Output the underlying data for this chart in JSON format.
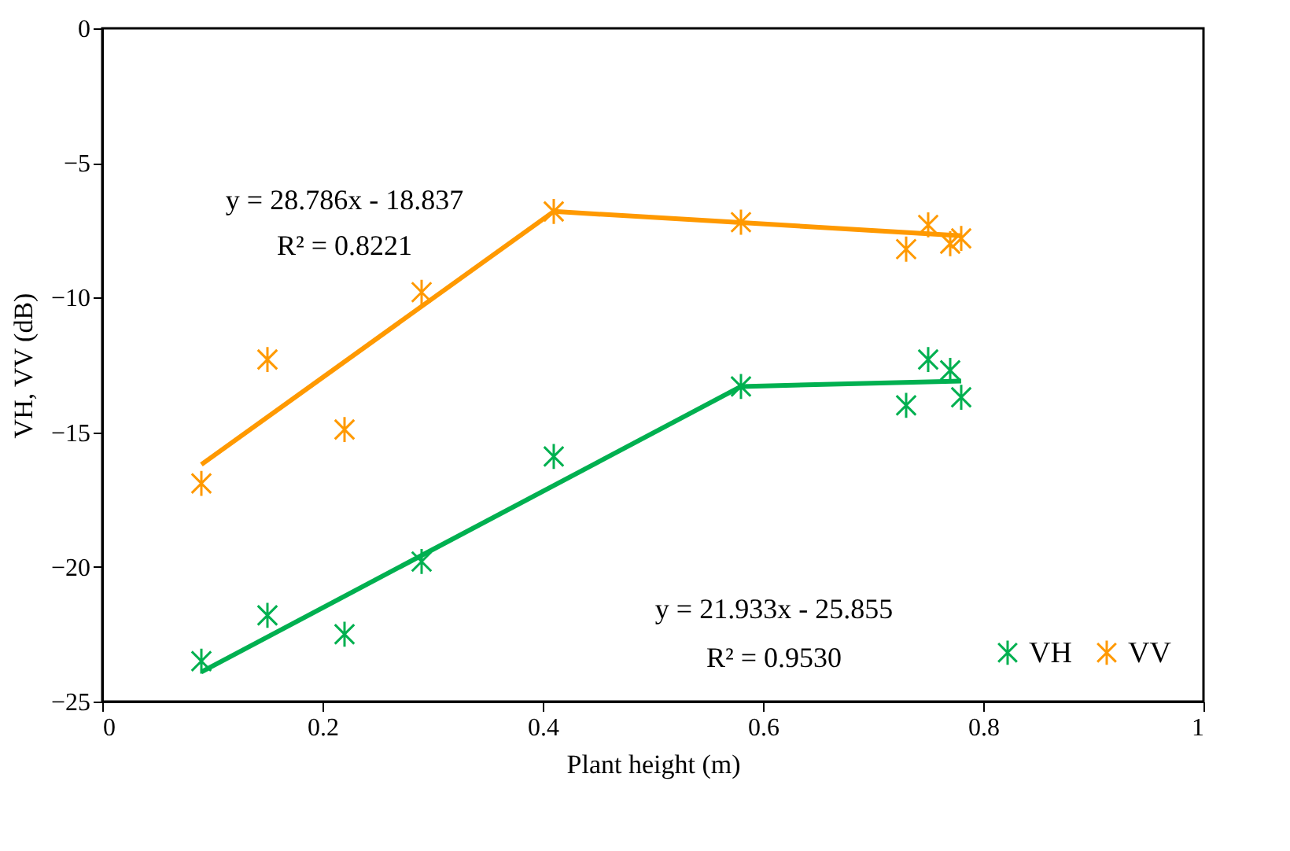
{
  "chart_data": {
    "type": "scatter",
    "xlabel": "Plant height (m)",
    "ylabel": "VH, VV (dB)",
    "xlim": [
      0,
      1
    ],
    "xticks": [
      0,
      0.2,
      0.4,
      0.6,
      0.8,
      1
    ],
    "ylim": [
      -25,
      0
    ],
    "yticks": [
      -25,
      -20,
      -15,
      -10,
      -5,
      0
    ],
    "grid": false,
    "legend": "bottom right",
    "marker": "cross",
    "series": [
      {
        "name": "VH",
        "color": "#00b050",
        "x": [
          0.09,
          0.15,
          0.22,
          0.29,
          0.41,
          0.58,
          0.73,
          0.75,
          0.77,
          0.78
        ],
        "values": [
          -23.5,
          -21.8,
          -22.5,
          -19.8,
          -15.9,
          -13.3,
          -14.0,
          -12.3,
          -12.7,
          -13.7
        ]
      },
      {
        "name": "VV",
        "color": "#ff9900",
        "x": [
          0.09,
          0.15,
          0.22,
          0.29,
          0.41,
          0.58,
          0.73,
          0.75,
          0.77,
          0.78
        ],
        "values": [
          -16.9,
          -12.3,
          -14.9,
          -9.8,
          -6.8,
          -7.2,
          -8.2,
          -7.3,
          -8.0,
          -7.8
        ]
      },
      {
        "type": "line",
        "color": "#00b050",
        "x": [
          0.09,
          0.58,
          0.78
        ],
        "values": [
          -23.9,
          -13.3,
          -13.1
        ],
        "line_style": "solid",
        "marker": "none"
      },
      {
        "type": "line",
        "color": "#ff9900",
        "x": [
          0.09,
          0.41,
          0.78
        ],
        "values": [
          -16.2,
          -6.8,
          -7.7
        ],
        "line_style": "solid",
        "marker": "none"
      }
    ],
    "annotations": [
      "y = 28.786x - 18.837",
      "R² = 0.8221",
      "y = 21.933x - 25.855",
      "R² = 0.9530"
    ]
  }
}
